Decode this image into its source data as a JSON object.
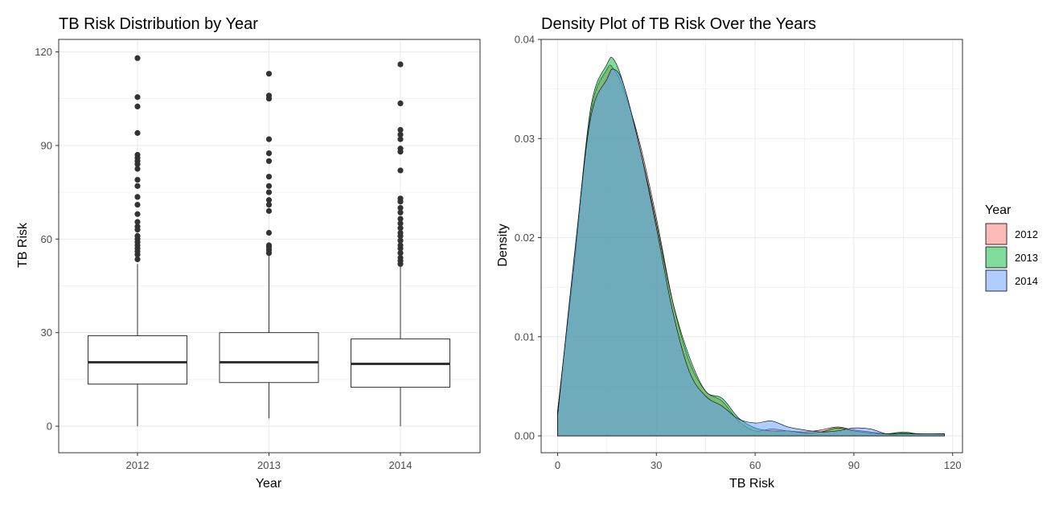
{
  "colors": {
    "grid": "#ebebeb",
    "panel_border": "#333333",
    "tick": "#333333",
    "box_line": "#333333",
    "outlier": "#333333",
    "fill_2012": "#F8766D",
    "fill_2013": "#00BA38",
    "fill_2014": "#619CFF"
  },
  "chart_data": [
    {
      "type": "box",
      "title": "TB Risk Distribution by Year",
      "xlabel": "Year",
      "ylabel": "TB Risk",
      "ylim": [
        -8.5,
        124
      ],
      "y_ticks": [
        0,
        30,
        60,
        90,
        120
      ],
      "grid": true,
      "categories": [
        "2012",
        "2013",
        "2014"
      ],
      "boxes": [
        {
          "year": "2012",
          "min": 0,
          "q1": 13.5,
          "median": 20.5,
          "q3": 29,
          "whisker_max": 52,
          "outliers": [
            53.5,
            55,
            56,
            57,
            58,
            59,
            60,
            61,
            63,
            64,
            65.5,
            68,
            71,
            73.5,
            77,
            79,
            82.5,
            84,
            85,
            86,
            87,
            94,
            102.5,
            105.5,
            118
          ]
        },
        {
          "year": "2013",
          "min": 2.5,
          "q1": 14,
          "median": 20.5,
          "q3": 30,
          "whisker_max": 55,
          "outliers": [
            55.5,
            56.5,
            57.5,
            58,
            62,
            69,
            71,
            72.5,
            75,
            77,
            80,
            85,
            87.5,
            92,
            105,
            106,
            113
          ]
        },
        {
          "year": "2014",
          "min": 0,
          "q1": 12.5,
          "median": 20,
          "q3": 28,
          "whisker_max": 51.5,
          "outliers": [
            52,
            53,
            54,
            55.5,
            57,
            58,
            59.5,
            61,
            62,
            63.5,
            65,
            66.5,
            68.5,
            70,
            72,
            73,
            82,
            88,
            89,
            92,
            93.5,
            95,
            103.5,
            116
          ]
        }
      ]
    },
    {
      "type": "area",
      "title": "Density Plot of TB Risk Over the Years",
      "xlabel": "TB Risk",
      "ylabel": "Density",
      "xlim": [
        -5,
        123
      ],
      "ylim": [
        -0.0017,
        0.04
      ],
      "x_ticks": [
        0,
        30,
        60,
        90,
        120
      ],
      "y_ticks": [
        0.0,
        0.01,
        0.02,
        0.03,
        0.04
      ],
      "y_tick_labels": [
        "0.00",
        "0.01",
        "0.02",
        "0.03",
        "0.04"
      ],
      "grid": true,
      "legend": {
        "title": "Year",
        "position": "right"
      },
      "series": [
        {
          "name": "2012",
          "x": [
            0,
            5,
            10,
            15,
            17,
            20,
            25,
            30,
            35,
            40,
            45,
            50,
            55,
            60,
            65,
            70,
            75,
            80,
            85,
            90,
            95,
            100,
            105,
            110,
            117.5
          ],
          "y": [
            0.0025,
            0.017,
            0.0325,
            0.037,
            0.037,
            0.035,
            0.0295,
            0.022,
            0.0135,
            0.0075,
            0.0045,
            0.0035,
            0.0015,
            0.0005,
            0.0007,
            0.0005,
            0.0004,
            0.0006,
            0.0009,
            0.0006,
            0.0004,
            0.0002,
            0.0003,
            0.0002,
            0.0002
          ]
        },
        {
          "name": "2013",
          "x": [
            0,
            5,
            10,
            15,
            17,
            20,
            25,
            30,
            35,
            40,
            45,
            50,
            55,
            60,
            65,
            70,
            75,
            80,
            85,
            90,
            95,
            100,
            105,
            110,
            117.5
          ],
          "y": [
            0.0025,
            0.0175,
            0.033,
            0.0375,
            0.038,
            0.0355,
            0.029,
            0.0215,
            0.0135,
            0.008,
            0.0045,
            0.0038,
            0.0018,
            0.0008,
            0.0005,
            0.0005,
            0.0003,
            0.0004,
            0.0008,
            0.0005,
            0.0003,
            0.0002,
            0.0004,
            0.0002,
            0.0002
          ]
        },
        {
          "name": "2014",
          "x": [
            0,
            5,
            10,
            15,
            17,
            20,
            25,
            30,
            35,
            40,
            45,
            50,
            55,
            60,
            65,
            70,
            75,
            80,
            85,
            90,
            95,
            100,
            105,
            110,
            117.5
          ],
          "y": [
            0.002,
            0.018,
            0.032,
            0.036,
            0.037,
            0.0355,
            0.029,
            0.021,
            0.0125,
            0.0065,
            0.004,
            0.003,
            0.0017,
            0.0013,
            0.0015,
            0.0009,
            0.0006,
            0.0004,
            0.0005,
            0.0008,
            0.0007,
            0.0002,
            0.0002,
            0.0002,
            0.0002
          ]
        }
      ]
    }
  ]
}
